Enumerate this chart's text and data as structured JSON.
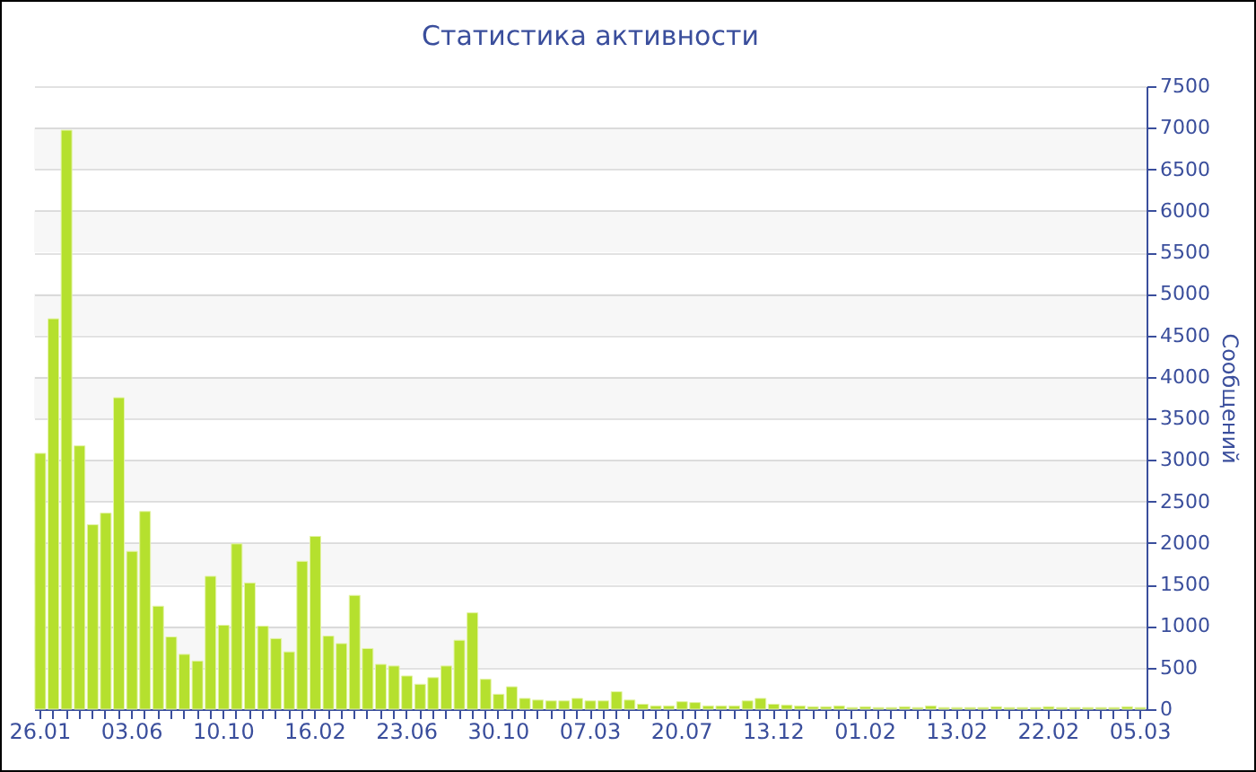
{
  "chart_data": {
    "type": "bar",
    "title": "Статистика активности",
    "ylabel": "Сообщений",
    "categories": [
      "26.01",
      null,
      null,
      null,
      null,
      null,
      null,
      "03.06",
      null,
      null,
      null,
      null,
      null,
      null,
      "10.10",
      null,
      null,
      null,
      null,
      null,
      null,
      "16.02",
      null,
      null,
      null,
      null,
      null,
      null,
      "23.06",
      null,
      null,
      null,
      null,
      null,
      null,
      "30.10",
      null,
      null,
      null,
      null,
      null,
      null,
      "07.03",
      null,
      null,
      null,
      null,
      null,
      null,
      "20.07",
      null,
      null,
      null,
      null,
      null,
      null,
      "13.12",
      null,
      null,
      null,
      null,
      null,
      null,
      "01.02",
      null,
      null,
      null,
      null,
      null,
      null,
      "13.02",
      null,
      null,
      null,
      null,
      null,
      null,
      "22.02",
      null,
      null,
      null,
      null,
      null,
      null,
      "05.03"
    ],
    "values": [
      3080,
      4700,
      6970,
      3170,
      2220,
      2360,
      3750,
      1900,
      2380,
      1240,
      870,
      660,
      580,
      1600,
      1010,
      1990,
      1520,
      1000,
      850,
      690,
      1780,
      2080,
      880,
      790,
      1370,
      730,
      540,
      520,
      400,
      300,
      380,
      520,
      830,
      1160,
      360,
      180,
      270,
      130,
      110,
      100,
      100,
      130,
      100,
      100,
      210,
      110,
      60,
      40,
      40,
      90,
      80,
      40,
      40,
      40,
      100,
      130,
      60,
      50,
      40,
      30,
      30,
      40,
      20,
      30,
      20,
      20,
      30,
      20,
      40,
      20,
      20,
      20,
      20,
      30,
      20,
      20,
      20,
      30,
      20,
      20,
      20,
      20,
      20,
      30,
      20
    ],
    "color": "#b5e02e",
    "ylim": [
      0,
      7500
    ],
    "yticks": [
      0,
      500,
      1000,
      1500,
      2000,
      2500,
      3000,
      3500,
      4000,
      4500,
      5000,
      5500,
      6000,
      6500,
      7000,
      7500
    ],
    "grid": "y"
  }
}
